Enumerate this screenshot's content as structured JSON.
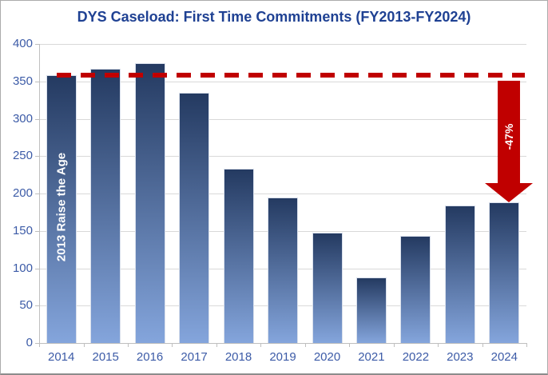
{
  "chart_data": {
    "type": "bar",
    "title": "DYS Caseload: First Time Commitments (FY2013-FY2024)",
    "categories": [
      "2014",
      "2015",
      "2016",
      "2017",
      "2018",
      "2019",
      "2020",
      "2021",
      "2022",
      "2023",
      "2024"
    ],
    "values": [
      358,
      367,
      374,
      335,
      233,
      195,
      148,
      88,
      143,
      184,
      188
    ],
    "xlabel": "",
    "ylabel": "",
    "ylim": [
      0,
      400
    ],
    "ytick_step": 50,
    "grid": true,
    "legend": "none",
    "bar_annotation": "2013 Raise the Age",
    "reference_line": {
      "style": "dashed",
      "value": 358,
      "color": "#C00000"
    },
    "arrow_annotation": {
      "label": "-47%",
      "points_to_category": "2024",
      "color": "#C00000"
    },
    "colors": {
      "red": "#C00000",
      "bar_gradient_top": "#243A61",
      "bar_gradient_bottom": "#84A5DC",
      "title": "#1F4193",
      "axis_label": "#3C5BA7",
      "gridline": "#D9D9D9",
      "axis_line": "#BFBFBF",
      "background": "#FFFFFF"
    }
  }
}
